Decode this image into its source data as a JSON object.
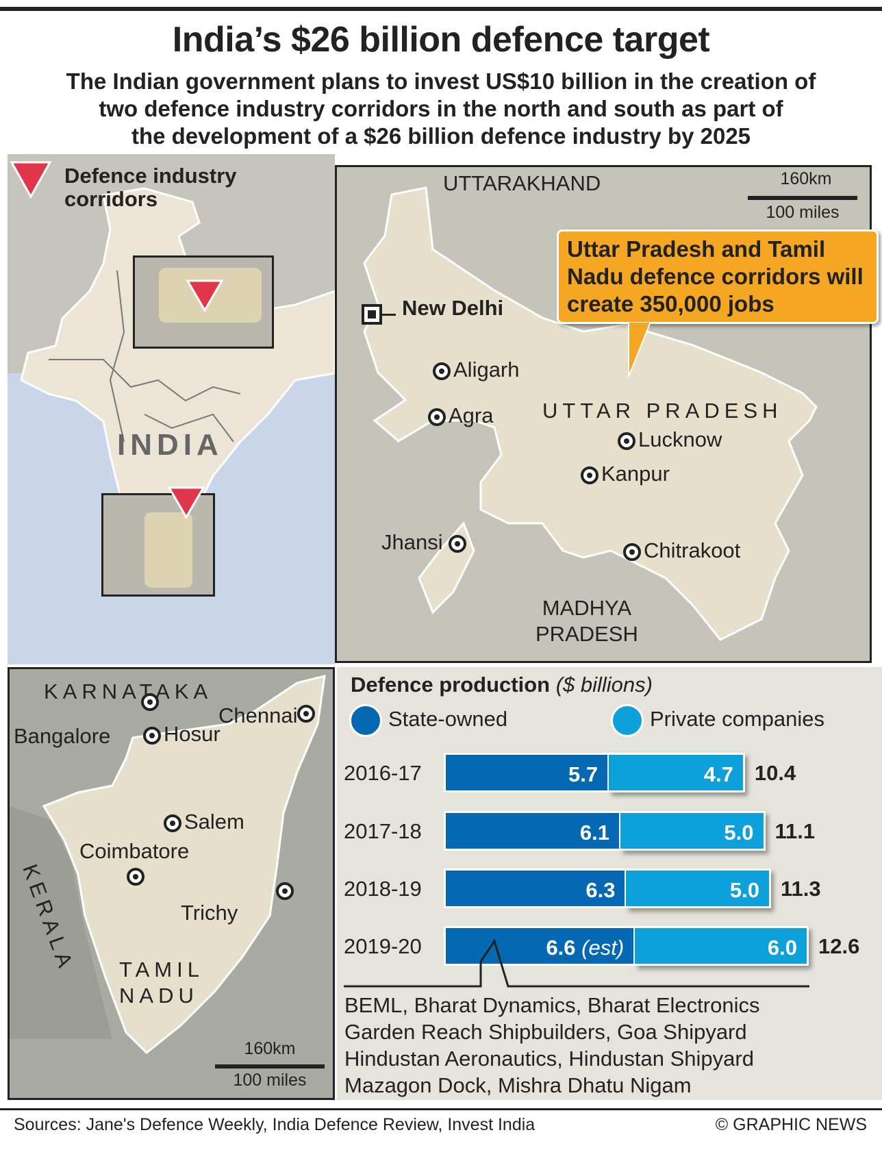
{
  "title": "India’s $26 billion defence target",
  "subtitle": [
    "The Indian government plans to invest US$10 billion in the creation of",
    "two defence industry corridors in the north and south as part of",
    "the development of a $26 billion defence industry by 2025"
  ],
  "legend": {
    "corridors_line1": "Defence industry",
    "corridors_line2": "corridors",
    "marker_color": "#e0354a"
  },
  "india_map": {
    "country_label": "INDIA"
  },
  "up_map": {
    "states": {
      "uttarakhand": "UTTARAKHAND",
      "uttar_pradesh": "UTTAR PRADESH",
      "madhya_line1": "MADHYA",
      "madhya_line2": "PRADESH"
    },
    "capital": "New Delhi",
    "cities": [
      "Aligarh",
      "Agra",
      "Lucknow",
      "Kanpur",
      "Jhansi",
      "Chitrakoot"
    ],
    "scale_km": "160km",
    "scale_miles": "100 miles",
    "callout": "Uttar Pradesh and Tamil Nadu defence corridors will create 350,000 jobs"
  },
  "tn_map": {
    "states": {
      "karnataka": "KARNATAKA",
      "kerala": "KERALA",
      "tamil_line1": "TAMIL",
      "tamil_line2": "NADU"
    },
    "cities": [
      "Chennai",
      "Bangalore",
      "Hosur",
      "Salem",
      "Coimbatore",
      "Trichy"
    ],
    "scale_km": "160km",
    "scale_miles": "100 miles"
  },
  "chart_data": {
    "type": "bar",
    "orientation": "horizontal-stacked",
    "title": "Defence production",
    "unit": "($ billions)",
    "categories": [
      "2016-17",
      "2017-18",
      "2018-19",
      "2019-20"
    ],
    "series": [
      {
        "name": "State-owned",
        "color": "#0568b3",
        "values": [
          5.7,
          6.1,
          6.3,
          6.6
        ],
        "labels": [
          "5.7",
          "6.1",
          "6.3",
          "6.6"
        ]
      },
      {
        "name": "Private companies",
        "color": "#0ea0da",
        "values": [
          4.7,
          5.0,
          5.0,
          6.0
        ],
        "labels": [
          "4.7",
          "5.0",
          "5.0",
          "6.0"
        ]
      }
    ],
    "totals": [
      "10.4",
      "11.1",
      "11.3",
      "12.6"
    ],
    "est_note": "(est)"
  },
  "state_owned_companies": [
    "BEML, Bharat Dynamics, Bharat Electronics",
    "Garden Reach Shipbuilders, Goa Shipyard",
    "Hindustan Aeronautics, Hindustan Shipyard",
    "Mazagon Dock, Mishra Dhatu Nigam"
  ],
  "footer": {
    "sources": "Sources: Jane's Defence Weekly, India Defence Review, Invest India",
    "copyright": "© GRAPHIC NEWS"
  }
}
